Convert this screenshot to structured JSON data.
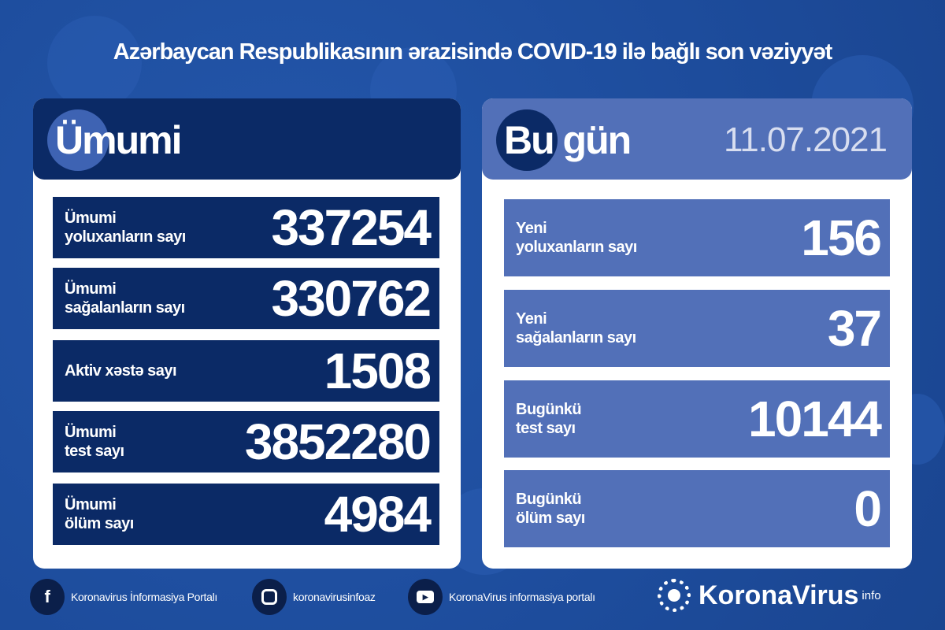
{
  "title": "Azərbaycan Respublikasının ərazisində COVID-19 ilə bağlı son vəziyyət",
  "colors": {
    "background": "#1d4c9c",
    "navy": "#0b2a66",
    "today_blue": "#5270b8",
    "card": "#ffffff"
  },
  "total": {
    "heading": "Ümumi",
    "rows": [
      {
        "label1": "Ümumi",
        "label2": "yoluxanların sayı",
        "value": "337254"
      },
      {
        "label1": "Ümumi",
        "label2": "sağalanların sayı",
        "value": "330762"
      },
      {
        "label1": "Aktiv xəstə sayı",
        "label2": "",
        "value": "1508"
      },
      {
        "label1": "Ümumi",
        "label2": "test sayı",
        "value": "3852280"
      },
      {
        "label1": "Ümumi",
        "label2": "ölüm sayı",
        "value": "4984"
      }
    ]
  },
  "today": {
    "heading": "Bu gün",
    "date": "11.07.2021",
    "rows": [
      {
        "label1": "Yeni",
        "label2": "yoluxanların sayı",
        "value": "156"
      },
      {
        "label1": "Yeni",
        "label2": "sağalanların sayı",
        "value": "37"
      },
      {
        "label1": "Bugünkü",
        "label2": "test sayı",
        "value": "10144"
      },
      {
        "label1": "Bugünkü",
        "label2": "ölüm sayı",
        "value": "0"
      }
    ]
  },
  "footer": {
    "facebook": {
      "icon": "facebook-icon",
      "label": "Koronavirus İnformasiya Portalı"
    },
    "instagram": {
      "icon": "instagram-icon",
      "label": "koronavirusinfoaz"
    },
    "youtube": {
      "icon": "youtube-icon",
      "label": "KoronaVirus informasiya portalı"
    },
    "logo": {
      "name": "KoronaVirus",
      "sup": "info"
    }
  }
}
